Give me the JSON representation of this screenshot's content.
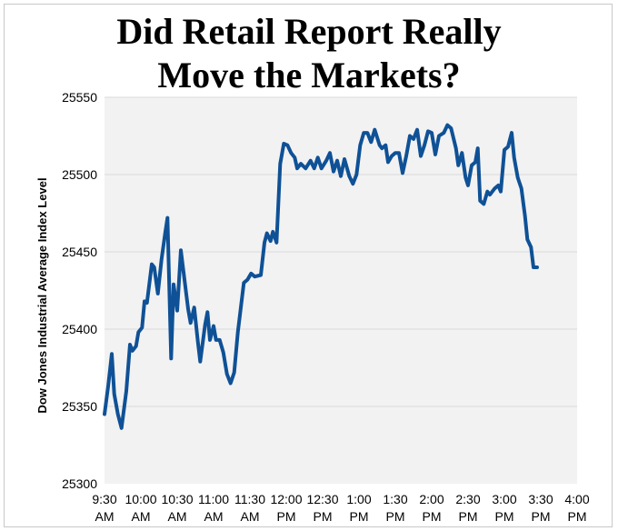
{
  "title_line1": "Did Retail Report Really",
  "title_line2": "Move the Markets?",
  "chart_data": {
    "type": "line",
    "title": "Did Retail Report Really Move the Markets?",
    "xlabel": "",
    "ylabel": "Dow Jones Industrial Average Index Level",
    "ylim": [
      25300,
      25550
    ],
    "yticks": [
      25300,
      25350,
      25400,
      25450,
      25500,
      25550
    ],
    "xlim": [
      0,
      390
    ],
    "xticks": [
      {
        "minute": 0,
        "line1": "9:30",
        "line2": "AM"
      },
      {
        "minute": 30,
        "line1": "10:00",
        "line2": "AM"
      },
      {
        "minute": 60,
        "line1": "10:30",
        "line2": "AM"
      },
      {
        "minute": 90,
        "line1": "11:00",
        "line2": "AM"
      },
      {
        "minute": 120,
        "line1": "11:30",
        "line2": "AM"
      },
      {
        "minute": 150,
        "line1": "12:00",
        "line2": "PM"
      },
      {
        "minute": 180,
        "line1": "12:30",
        "line2": "PM"
      },
      {
        "minute": 210,
        "line1": "1:00",
        "line2": "PM"
      },
      {
        "minute": 240,
        "line1": "1:30",
        "line2": "PM"
      },
      {
        "minute": 270,
        "line1": "2:00",
        "line2": "PM"
      },
      {
        "minute": 300,
        "line1": "2:30",
        "line2": "PM"
      },
      {
        "minute": 330,
        "line1": "3:00",
        "line2": "PM"
      },
      {
        "minute": 360,
        "line1": "3:30",
        "line2": "PM"
      },
      {
        "minute": 390,
        "line1": "4:00",
        "line2": "PM"
      }
    ],
    "grid": "horizontal",
    "series": [
      {
        "name": "Dow Jones Industrial Average",
        "color": "#0f5196",
        "points": [
          [
            0,
            25345
          ],
          [
            3,
            25363
          ],
          [
            6,
            25384
          ],
          [
            8,
            25358
          ],
          [
            11,
            25345
          ],
          [
            14,
            25336
          ],
          [
            18,
            25360
          ],
          [
            21,
            25390
          ],
          [
            23,
            25386
          ],
          [
            26,
            25389
          ],
          [
            28,
            25398
          ],
          [
            31,
            25401
          ],
          [
            33,
            25418
          ],
          [
            35,
            25417
          ],
          [
            39,
            25442
          ],
          [
            41,
            25440
          ],
          [
            44,
            25423
          ],
          [
            47,
            25445
          ],
          [
            50,
            25462
          ],
          [
            52,
            25472
          ],
          [
            55,
            25381
          ],
          [
            57,
            25429
          ],
          [
            60,
            25412
          ],
          [
            63,
            25451
          ],
          [
            66,
            25432
          ],
          [
            69,
            25413
          ],
          [
            71,
            25404
          ],
          [
            74,
            25414
          ],
          [
            77,
            25392
          ],
          [
            79,
            25379
          ],
          [
            83,
            25403
          ],
          [
            85,
            25411
          ],
          [
            87,
            25393
          ],
          [
            90,
            25402
          ],
          [
            92,
            25393
          ],
          [
            95,
            25393
          ],
          [
            98,
            25385
          ],
          [
            101,
            25371
          ],
          [
            104,
            25365
          ],
          [
            107,
            25372
          ],
          [
            110,
            25398
          ],
          [
            115,
            25430
          ],
          [
            118,
            25432
          ],
          [
            121,
            25436
          ],
          [
            124,
            25434
          ],
          [
            129,
            25435
          ],
          [
            132,
            25456
          ],
          [
            134,
            25462
          ],
          [
            137,
            25457
          ],
          [
            139,
            25463
          ],
          [
            142,
            25456
          ],
          [
            145,
            25507
          ],
          [
            148,
            25520
          ],
          [
            151,
            25519
          ],
          [
            154,
            25514
          ],
          [
            157,
            25511
          ],
          [
            159,
            25504
          ],
          [
            162,
            25507
          ],
          [
            166,
            25504
          ],
          [
            170,
            25509
          ],
          [
            173,
            25504
          ],
          [
            176,
            25511
          ],
          [
            179,
            25504
          ],
          [
            183,
            25509
          ],
          [
            186,
            25514
          ],
          [
            189,
            25502
          ],
          [
            192,
            25509
          ],
          [
            195,
            25499
          ],
          [
            198,
            25510
          ],
          [
            202,
            25499
          ],
          [
            205,
            25494
          ],
          [
            208,
            25500
          ],
          [
            211,
            25519
          ],
          [
            214,
            25527
          ],
          [
            217,
            25527
          ],
          [
            220,
            25521
          ],
          [
            223,
            25529
          ],
          [
            227,
            25519
          ],
          [
            229,
            25517
          ],
          [
            232,
            25519
          ],
          [
            234,
            25508
          ],
          [
            237,
            25512
          ],
          [
            240,
            25514
          ],
          [
            243,
            25514
          ],
          [
            246,
            25501
          ],
          [
            249,
            25512
          ],
          [
            252,
            25525
          ],
          [
            255,
            25523
          ],
          [
            258,
            25529
          ],
          [
            261,
            25512
          ],
          [
            264,
            25519
          ],
          [
            267,
            25528
          ],
          [
            270,
            25527
          ],
          [
            273,
            25513
          ],
          [
            276,
            25525
          ],
          [
            280,
            25527
          ],
          [
            283,
            25532
          ],
          [
            286,
            25530
          ],
          [
            290,
            25517
          ],
          [
            292,
            25506
          ],
          [
            295,
            25514
          ],
          [
            298,
            25498
          ],
          [
            300,
            25493
          ],
          [
            303,
            25506
          ],
          [
            306,
            25508
          ],
          [
            308,
            25517
          ],
          [
            310,
            25483
          ],
          [
            313,
            25481
          ],
          [
            316,
            25489
          ],
          [
            318,
            25487
          ],
          [
            322,
            25491
          ],
          [
            325,
            25493
          ],
          [
            327,
            25489
          ],
          [
            330,
            25516
          ],
          [
            333,
            25518
          ],
          [
            336,
            25527
          ],
          [
            338,
            25511
          ],
          [
            341,
            25498
          ],
          [
            344,
            25491
          ],
          [
            347,
            25473
          ],
          [
            349,
            25458
          ],
          [
            352,
            25453
          ],
          [
            354,
            25440
          ],
          [
            357,
            25440
          ]
        ]
      }
    ]
  }
}
